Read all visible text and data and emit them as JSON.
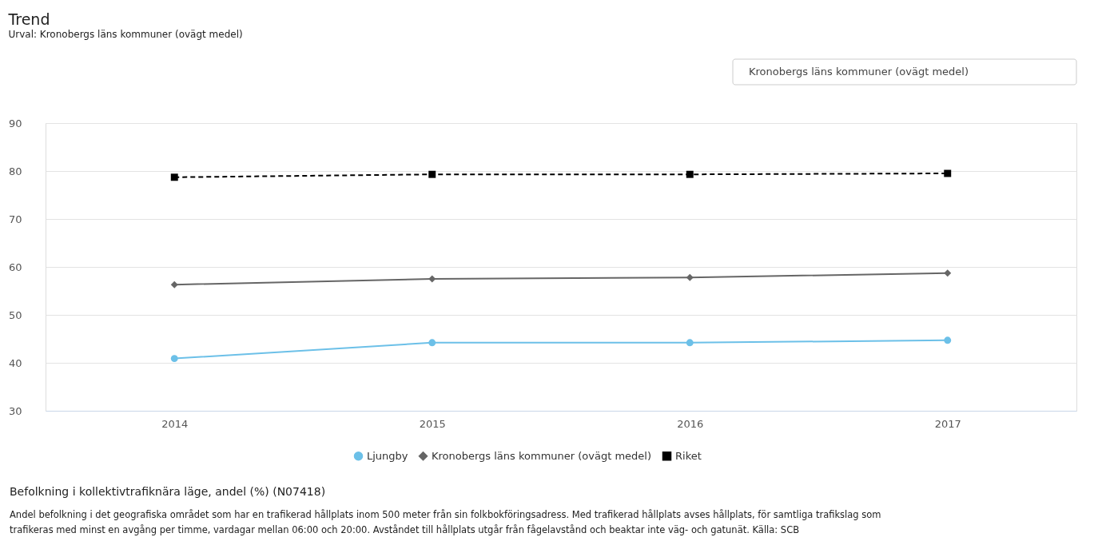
{
  "chart_data": {
    "type": "line",
    "title": "Trend",
    "subtitle": "Urval: Kronobergs läns kommuner (ovägt medel)",
    "categories": [
      "2014",
      "2015",
      "2016",
      "2017"
    ],
    "series": [
      {
        "name": "Ljungby",
        "color": "#6cc0e8",
        "values": [
          40.9,
          44.2,
          44.2,
          44.7
        ],
        "marker": "circle",
        "line_style": "solid"
      },
      {
        "name": "Kronobergs läns kommuner (ovägt medel)",
        "color": "#666666",
        "values": [
          56.3,
          57.5,
          57.8,
          58.7
        ],
        "marker": "diamond",
        "line_style": "solid"
      },
      {
        "name": "Riket",
        "color": "#000000",
        "values": [
          78.7,
          79.3,
          79.3,
          79.5
        ],
        "marker": "square",
        "line_style": "dashed"
      }
    ],
    "ylim": [
      30,
      90
    ],
    "yticks": [
      30,
      40,
      50,
      60,
      70,
      80,
      90
    ],
    "grid": "y",
    "legend": "bottom",
    "annotations": [
      "Kronobergs läns kommuner (ovägt medel)",
      "Befolkning i kollektivtrafiknära läge, andel (%) (N07418)",
      "Andel befolkning i det geografiska området som har en trafikerad hållplats inom 500 meter från sin folkbokföringsadress. Med trafikerad hållplats avses hållplats, för samtliga trafikslag som trafikeras med minst en avgång per timme, vardagar mellan 06:00 och 20:00. Avståndet till hållplats utgår från fågelavstånd och beaktar inte väg- och gatunät. Källa: SCB"
    ]
  }
}
